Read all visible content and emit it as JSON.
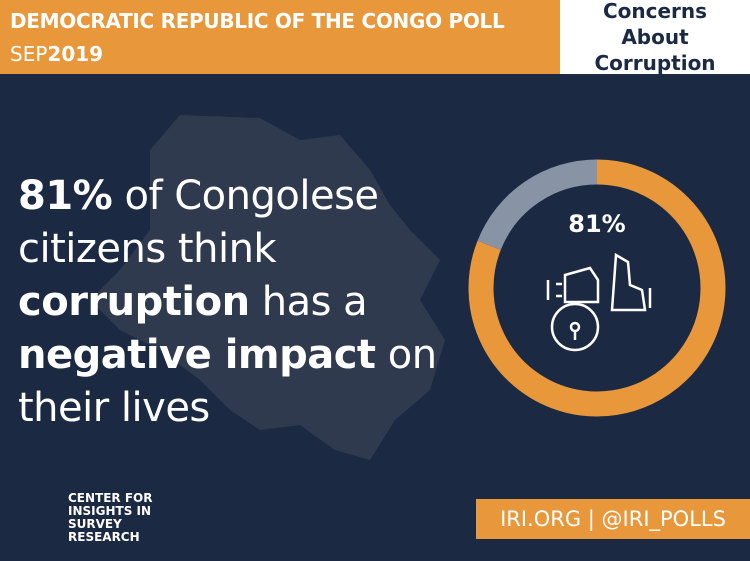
{
  "header": {
    "title": "DEMOCRATIC REPUBLIC OF THE CONGO POLL",
    "month": "SEP",
    "year": "2019",
    "topic": "Concerns About Corruption"
  },
  "headline": [
    {
      "text": "81%",
      "bold": true
    },
    {
      "text": " of Congolese citizens think ",
      "bold": false
    },
    {
      "text": "corruption",
      "bold": true
    },
    {
      "text": " has a ",
      "bold": false
    },
    {
      "text": "negative impact",
      "bold": true
    },
    {
      "text": " on their lives",
      "bold": false
    }
  ],
  "chart_data": {
    "type": "donut",
    "values": [
      81,
      19
    ],
    "value_labels": [
      "81%",
      null
    ],
    "colors": [
      "#e8973b",
      "#8893a5"
    ]
  },
  "logo": {
    "lines": [
      "CENTER FOR",
      "INSIGHTS IN",
      "SURVEY",
      "RESEARCH"
    ]
  },
  "footer": "IRI.ORG | @IRI_POLLS"
}
